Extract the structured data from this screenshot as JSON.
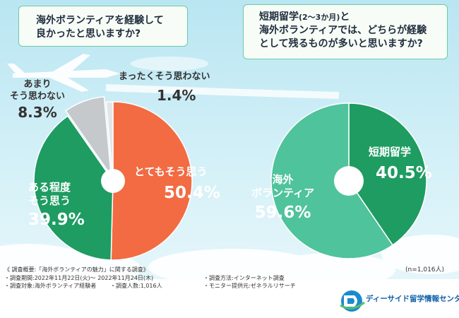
{
  "chart_data": [
    {
      "type": "pie",
      "question": [
        "海外ボランティアを経験して",
        "良かったと思いますか?"
      ],
      "series": [
        {
          "name": "とてもそう思う",
          "value": 50.4,
          "color": "#f26b43"
        },
        {
          "name": "ある程度そう思う",
          "value": 39.9,
          "color": "#1e9c62"
        },
        {
          "name": "あまりそう思わない",
          "value": 8.3,
          "color": "#c5c9cc"
        },
        {
          "name": "まったくそう思わない",
          "value": 1.4,
          "color": "#e3e6e8"
        }
      ],
      "labels": {
        "very": {
          "line1": "とてもそう思う",
          "pct": "50.4%"
        },
        "somewhat": {
          "line1": "ある程度",
          "line2": "そう思う",
          "pct": "39.9%"
        },
        "not_much": {
          "line1": "あまり",
          "line2": "そう思わない",
          "pct": "8.3%"
        },
        "not_at_all": {
          "line1": "まったくそう思わない",
          "pct": "1.4%"
        }
      }
    },
    {
      "type": "pie",
      "question": [
        "短期留学",
        "(2〜3か月)",
        "と",
        "海外ボランティアでは、どちらが経験",
        "として残るものが多いと思いますか?"
      ],
      "series": [
        {
          "name": "短期留学",
          "value": 40.5,
          "color": "#1e9c62"
        },
        {
          "name": "海外ボランティア",
          "value": 59.6,
          "color": "#4fc39b"
        }
      ],
      "labels": {
        "study": {
          "line1": "短期留学",
          "pct": "40.5%"
        },
        "volunteer": {
          "line1": "海外",
          "line2": "ボランティア",
          "pct": "59.6%"
        }
      }
    }
  ],
  "sample_note": "(n=1,016人)",
  "survey": {
    "title": "《 調査概要:「海外ボランティアの魅力」に関する調査》",
    "period": "・調査期間:2022年11月22日(火)〜 2022年11月24日(木)",
    "method": "・調査方法:インターネット調査",
    "target": "・調査対象:海外ボランティア経験者",
    "count": "・調査人数:1,016人",
    "provider": "・モニター提供元:ゼネラルリサーチ"
  },
  "brand": {
    "name": "ディーサイド留学情報センター",
    "color": "#0d5fa8"
  }
}
